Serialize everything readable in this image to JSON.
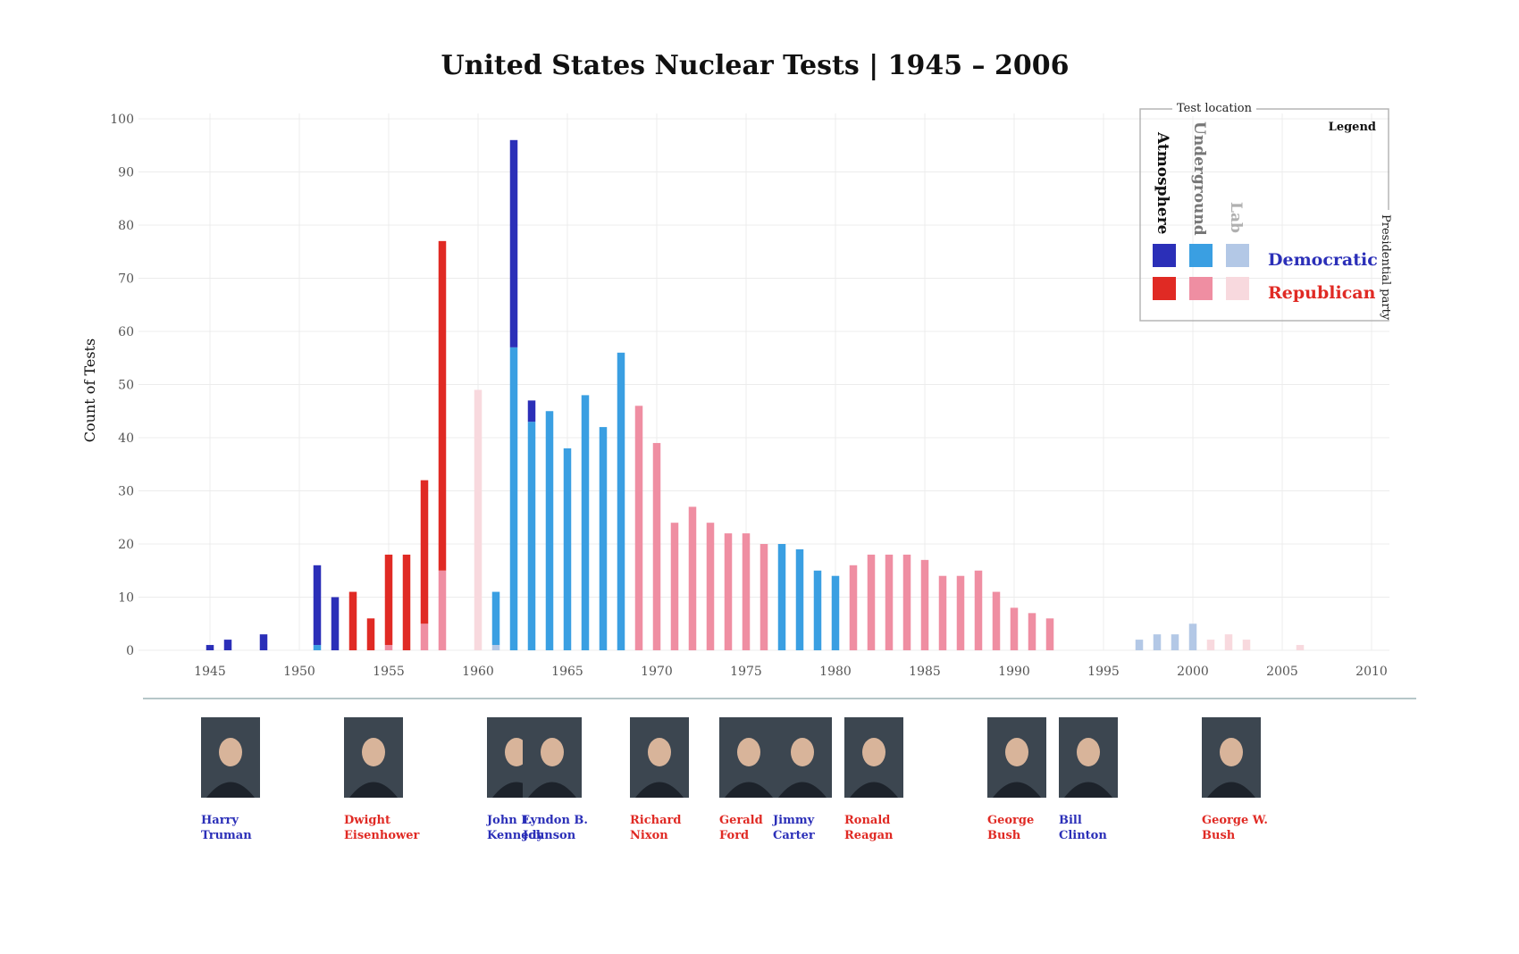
{
  "chart_data": {
    "type": "bar",
    "title": "United States Nuclear Tests | 1945 – 2006",
    "ylabel": "Count of Tests",
    "xlabel": "",
    "ylim": [
      0,
      100
    ],
    "yticks": [
      0,
      10,
      20,
      30,
      40,
      50,
      60,
      70,
      80,
      90,
      100
    ],
    "xticks": [
      1945,
      1950,
      1955,
      1960,
      1965,
      1970,
      1975,
      1980,
      1985,
      1990,
      1995,
      2000,
      2005,
      2010
    ],
    "xlim": [
      1941,
      2011
    ],
    "grid": true,
    "stacked": true,
    "colors": {
      "Democratic": {
        "Atmosphere": "#2b2fb8",
        "Underground": "#3a9fe2",
        "Lab": "#b3c8e6"
      },
      "Republican": {
        "Atmosphere": "#e02a24",
        "Underground": "#ef8ea2",
        "Lab": "#f8d9de"
      }
    },
    "bars": [
      {
        "year": 1945,
        "party": "Democratic",
        "Atmosphere": 1,
        "Underground": 0,
        "Lab": 0
      },
      {
        "year": 1946,
        "party": "Democratic",
        "Atmosphere": 2,
        "Underground": 0,
        "Lab": 0
      },
      {
        "year": 1948,
        "party": "Democratic",
        "Atmosphere": 3,
        "Underground": 0,
        "Lab": 0
      },
      {
        "year": 1951,
        "party": "Democratic",
        "Atmosphere": 15,
        "Underground": 1,
        "Lab": 0
      },
      {
        "year": 1952,
        "party": "Democratic",
        "Atmosphere": 10,
        "Underground": 0,
        "Lab": 0
      },
      {
        "year": 1953,
        "party": "Republican",
        "Atmosphere": 11,
        "Underground": 0,
        "Lab": 0
      },
      {
        "year": 1954,
        "party": "Republican",
        "Atmosphere": 6,
        "Underground": 0,
        "Lab": 0
      },
      {
        "year": 1955,
        "party": "Republican",
        "Atmosphere": 17,
        "Underground": 1,
        "Lab": 0
      },
      {
        "year": 1956,
        "party": "Republican",
        "Atmosphere": 18,
        "Underground": 0,
        "Lab": 0
      },
      {
        "year": 1957,
        "party": "Republican",
        "Atmosphere": 27,
        "Underground": 5,
        "Lab": 0
      },
      {
        "year": 1958,
        "party": "Republican",
        "Atmosphere": 62,
        "Underground": 15,
        "Lab": 0
      },
      {
        "year": 1960,
        "party": "Republican",
        "Atmosphere": 0,
        "Underground": 0,
        "Lab": 49
      },
      {
        "year": 1961,
        "party": "Democratic",
        "Atmosphere": 0,
        "Underground": 10,
        "Lab": 1
      },
      {
        "year": 1962,
        "party": "Democratic",
        "Atmosphere": 39,
        "Underground": 57,
        "Lab": 0
      },
      {
        "year": 1963,
        "party": "Democratic",
        "Atmosphere": 4,
        "Underground": 43,
        "Lab": 0
      },
      {
        "year": 1964,
        "party": "Democratic",
        "Atmosphere": 0,
        "Underground": 45,
        "Lab": 0
      },
      {
        "year": 1965,
        "party": "Democratic",
        "Atmosphere": 0,
        "Underground": 38,
        "Lab": 0
      },
      {
        "year": 1966,
        "party": "Democratic",
        "Atmosphere": 0,
        "Underground": 48,
        "Lab": 0
      },
      {
        "year": 1967,
        "party": "Democratic",
        "Atmosphere": 0,
        "Underground": 42,
        "Lab": 0
      },
      {
        "year": 1968,
        "party": "Democratic",
        "Atmosphere": 0,
        "Underground": 56,
        "Lab": 0
      },
      {
        "year": 1969,
        "party": "Republican",
        "Atmosphere": 0,
        "Underground": 46,
        "Lab": 0
      },
      {
        "year": 1970,
        "party": "Republican",
        "Atmosphere": 0,
        "Underground": 39,
        "Lab": 0
      },
      {
        "year": 1971,
        "party": "Republican",
        "Atmosphere": 0,
        "Underground": 24,
        "Lab": 0
      },
      {
        "year": 1972,
        "party": "Republican",
        "Atmosphere": 0,
        "Underground": 27,
        "Lab": 0
      },
      {
        "year": 1973,
        "party": "Republican",
        "Atmosphere": 0,
        "Underground": 24,
        "Lab": 0
      },
      {
        "year": 1974,
        "party": "Republican",
        "Atmosphere": 0,
        "Underground": 22,
        "Lab": 0
      },
      {
        "year": 1975,
        "party": "Republican",
        "Atmosphere": 0,
        "Underground": 22,
        "Lab": 0
      },
      {
        "year": 1976,
        "party": "Republican",
        "Atmosphere": 0,
        "Underground": 20,
        "Lab": 0
      },
      {
        "year": 1977,
        "party": "Democratic",
        "Atmosphere": 0,
        "Underground": 20,
        "Lab": 0
      },
      {
        "year": 1978,
        "party": "Democratic",
        "Atmosphere": 0,
        "Underground": 19,
        "Lab": 0
      },
      {
        "year": 1979,
        "party": "Democratic",
        "Atmosphere": 0,
        "Underground": 15,
        "Lab": 0
      },
      {
        "year": 1980,
        "party": "Democratic",
        "Atmosphere": 0,
        "Underground": 14,
        "Lab": 0
      },
      {
        "year": 1981,
        "party": "Republican",
        "Atmosphere": 0,
        "Underground": 16,
        "Lab": 0
      },
      {
        "year": 1982,
        "party": "Republican",
        "Atmosphere": 0,
        "Underground": 18,
        "Lab": 0
      },
      {
        "year": 1983,
        "party": "Republican",
        "Atmosphere": 0,
        "Underground": 18,
        "Lab": 0
      },
      {
        "year": 1984,
        "party": "Republican",
        "Atmosphere": 0,
        "Underground": 18,
        "Lab": 0
      },
      {
        "year": 1985,
        "party": "Republican",
        "Atmosphere": 0,
        "Underground": 17,
        "Lab": 0
      },
      {
        "year": 1986,
        "party": "Republican",
        "Atmosphere": 0,
        "Underground": 14,
        "Lab": 0
      },
      {
        "year": 1987,
        "party": "Republican",
        "Atmosphere": 0,
        "Underground": 14,
        "Lab": 0
      },
      {
        "year": 1988,
        "party": "Republican",
        "Atmosphere": 0,
        "Underground": 15,
        "Lab": 0
      },
      {
        "year": 1989,
        "party": "Republican",
        "Atmosphere": 0,
        "Underground": 11,
        "Lab": 0
      },
      {
        "year": 1990,
        "party": "Republican",
        "Atmosphere": 0,
        "Underground": 8,
        "Lab": 0
      },
      {
        "year": 1991,
        "party": "Republican",
        "Atmosphere": 0,
        "Underground": 7,
        "Lab": 0
      },
      {
        "year": 1992,
        "party": "Republican",
        "Atmosphere": 0,
        "Underground": 6,
        "Lab": 0
      },
      {
        "year": 1997,
        "party": "Democratic",
        "Atmosphere": 0,
        "Underground": 0,
        "Lab": 2
      },
      {
        "year": 1998,
        "party": "Democratic",
        "Atmosphere": 0,
        "Underground": 0,
        "Lab": 3
      },
      {
        "year": 1999,
        "party": "Democratic",
        "Atmosphere": 0,
        "Underground": 0,
        "Lab": 3
      },
      {
        "year": 2000,
        "party": "Democratic",
        "Atmosphere": 0,
        "Underground": 0,
        "Lab": 5
      },
      {
        "year": 2001,
        "party": "Republican",
        "Atmosphere": 0,
        "Underground": 0,
        "Lab": 2
      },
      {
        "year": 2002,
        "party": "Republican",
        "Atmosphere": 0,
        "Underground": 0,
        "Lab": 3
      },
      {
        "year": 2003,
        "party": "Republican",
        "Atmosphere": 0,
        "Underground": 0,
        "Lab": 2
      },
      {
        "year": 2006,
        "party": "Republican",
        "Atmosphere": 0,
        "Underground": 0,
        "Lab": 1
      }
    ],
    "legend": {
      "title": "Legend",
      "placement": "top-right",
      "location_title": "Test location",
      "party_title": "Presidential party",
      "locations": [
        "Atmosphere",
        "Underground",
        "Lab"
      ],
      "parties": [
        "Democratic",
        "Republican"
      ]
    }
  },
  "presidents": [
    {
      "name": [
        "Harry",
        "Truman"
      ],
      "party": "Democratic",
      "year": 1945
    },
    {
      "name": [
        "Dwight",
        "Eisenhower"
      ],
      "party": "Republican",
      "year": 1953
    },
    {
      "name": [
        "John F.",
        "Kennedy"
      ],
      "party": "Democratic",
      "year": 1961
    },
    {
      "name": [
        "Lyndon B.",
        "Johnson"
      ],
      "party": "Democratic",
      "year": 1963
    },
    {
      "name": [
        "Richard",
        "Nixon"
      ],
      "party": "Republican",
      "year": 1969
    },
    {
      "name": [
        "Gerald",
        "Ford"
      ],
      "party": "Republican",
      "year": 1974
    },
    {
      "name": [
        "Jimmy",
        "Carter"
      ],
      "party": "Democratic",
      "year": 1977
    },
    {
      "name": [
        "Ronald",
        "Reagan"
      ],
      "party": "Republican",
      "year": 1981
    },
    {
      "name": [
        "George",
        "Bush"
      ],
      "party": "Republican",
      "year": 1989
    },
    {
      "name": [
        "Bill",
        "Clinton"
      ],
      "party": "Democratic",
      "year": 1993
    },
    {
      "name": [
        "George W.",
        "Bush"
      ],
      "party": "Republican",
      "year": 2001
    }
  ],
  "party_text_colors": {
    "Democratic": "#2b2fb8",
    "Republican": "#e02a24"
  }
}
